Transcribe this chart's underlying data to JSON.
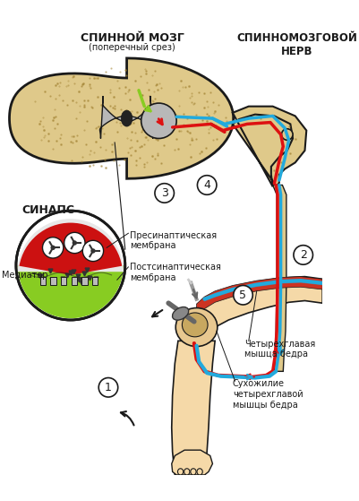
{
  "title_spinnoy": "СПИННОЙ МОЗГ",
  "title_spinnoy_sub": "(поперечный срез)",
  "title_nerv": "СПИННОМОЗГОВОЙ\nНЕРВ",
  "label_sinaps": "СИНАПС",
  "label_presin": "Пресинаптическая\nмембрана",
  "label_postsin": "Постсинаптическая\nмембрана",
  "label_mediator": "Медиатор",
  "label_muscle": "Четырехглавая\nмышца бедра",
  "label_tendon": "Сухожилие\nчетырехглавой\nмышцы бедра",
  "num1": "1",
  "num2": "2",
  "num3": "3",
  "num4": "4",
  "num5": "5",
  "bg_color": "#ffffff",
  "cord_fill": "#dfc98a",
  "cord_edge": "#1a1a1a",
  "gray_fill": "#b8b8b8",
  "synapse_green": "#88cc22",
  "synapse_red": "#cc1111",
  "synapse_white": "#f0f0f0",
  "nerve_blue": "#22aadd",
  "nerve_red": "#dd1111",
  "muscle_red": "#cc3322",
  "skin_color": "#f5d9a8",
  "skin_dark": "#e0b87a",
  "tube_fill": "#dfc98a",
  "line_color": "#1a1a1a",
  "dot_color": "#a08030"
}
